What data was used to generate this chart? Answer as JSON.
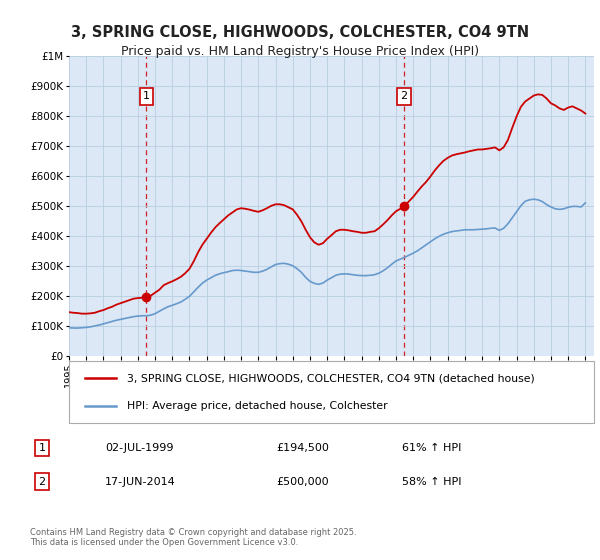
{
  "title": "3, SPRING CLOSE, HIGHWOODS, COLCHESTER, CO4 9TN",
  "subtitle": "Price paid vs. HM Land Registry's House Price Index (HPI)",
  "title_fontsize": 10.5,
  "subtitle_fontsize": 9,
  "ylim": [
    0,
    1000000
  ],
  "yticks": [
    0,
    100000,
    200000,
    300000,
    400000,
    500000,
    600000,
    700000,
    800000,
    900000,
    1000000
  ],
  "ytick_labels": [
    "£0",
    "£100K",
    "£200K",
    "£300K",
    "£400K",
    "£500K",
    "£600K",
    "£700K",
    "£800K",
    "£900K",
    "£1M"
  ],
  "background_color": "#ffffff",
  "plot_bg_color": "#dce8f5",
  "grid_color": "#b8cfe0",
  "marker1_date": 1999.5,
  "marker1_price": 194500,
  "marker1_label": "1",
  "marker2_date": 2014.46,
  "marker2_price": 500000,
  "marker2_label": "2",
  "legend_label_red": "3, SPRING CLOSE, HIGHWOODS, COLCHESTER, CO4 9TN (detached house)",
  "legend_label_blue": "HPI: Average price, detached house, Colchester",
  "table_row1": [
    "1",
    "02-JUL-1999",
    "£194,500",
    "61% ↑ HPI"
  ],
  "table_row2": [
    "2",
    "17-JUN-2014",
    "£500,000",
    "58% ↑ HPI"
  ],
  "footer": "Contains HM Land Registry data © Crown copyright and database right 2025.\nThis data is licensed under the Open Government Licence v3.0.",
  "red_line_color": "#cc0000",
  "blue_line_color": "#6699cc",
  "vline_color": "#cc0000",
  "hpi_red_data": {
    "years": [
      1995.0,
      1995.25,
      1995.5,
      1995.75,
      1996.0,
      1996.25,
      1996.5,
      1996.75,
      1997.0,
      1997.25,
      1997.5,
      1997.75,
      1998.0,
      1998.25,
      1998.5,
      1998.75,
      1999.0,
      1999.25,
      1999.5,
      1999.75,
      2000.0,
      2000.25,
      2000.5,
      2000.75,
      2001.0,
      2001.25,
      2001.5,
      2001.75,
      2002.0,
      2002.25,
      2002.5,
      2002.75,
      2003.0,
      2003.25,
      2003.5,
      2003.75,
      2004.0,
      2004.25,
      2004.5,
      2004.75,
      2005.0,
      2005.25,
      2005.5,
      2005.75,
      2006.0,
      2006.25,
      2006.5,
      2006.75,
      2007.0,
      2007.25,
      2007.5,
      2007.75,
      2008.0,
      2008.25,
      2008.5,
      2008.75,
      2009.0,
      2009.25,
      2009.5,
      2009.75,
      2010.0,
      2010.25,
      2010.5,
      2010.75,
      2011.0,
      2011.25,
      2011.5,
      2011.75,
      2012.0,
      2012.25,
      2012.5,
      2012.75,
      2013.0,
      2013.25,
      2013.5,
      2013.75,
      2014.0,
      2014.25,
      2014.5,
      2014.75,
      2015.0,
      2015.25,
      2015.5,
      2015.75,
      2016.0,
      2016.25,
      2016.5,
      2016.75,
      2017.0,
      2017.25,
      2017.5,
      2017.75,
      2018.0,
      2018.25,
      2018.5,
      2018.75,
      2019.0,
      2019.25,
      2019.5,
      2019.75,
      2020.0,
      2020.25,
      2020.5,
      2020.75,
      2021.0,
      2021.25,
      2021.5,
      2021.75,
      2022.0,
      2022.25,
      2022.5,
      2022.75,
      2023.0,
      2023.25,
      2023.5,
      2023.75,
      2024.0,
      2024.25,
      2024.5,
      2024.75,
      2025.0
    ],
    "values": [
      145000,
      143000,
      142000,
      140000,
      140000,
      141000,
      143000,
      148000,
      152000,
      158000,
      163000,
      170000,
      175000,
      180000,
      185000,
      190000,
      192000,
      193000,
      194500,
      200000,
      210000,
      220000,
      235000,
      242000,
      248000,
      255000,
      263000,
      275000,
      290000,
      315000,
      345000,
      370000,
      390000,
      410000,
      428000,
      442000,
      455000,
      468000,
      478000,
      488000,
      492000,
      490000,
      487000,
      483000,
      480000,
      485000,
      492000,
      500000,
      505000,
      505000,
      502000,
      495000,
      488000,
      470000,
      448000,
      420000,
      395000,
      378000,
      370000,
      375000,
      390000,
      402000,
      415000,
      420000,
      420000,
      418000,
      415000,
      413000,
      410000,
      410000,
      413000,
      415000,
      425000,
      438000,
      452000,
      468000,
      482000,
      490000,
      500000,
      515000,
      530000,
      548000,
      565000,
      580000,
      598000,
      618000,
      635000,
      650000,
      660000,
      668000,
      672000,
      675000,
      678000,
      682000,
      685000,
      688000,
      688000,
      690000,
      692000,
      695000,
      685000,
      695000,
      720000,
      760000,
      798000,
      830000,
      848000,
      858000,
      868000,
      872000,
      870000,
      858000,
      842000,
      835000,
      825000,
      820000,
      828000,
      832000,
      825000,
      818000,
      808000
    ]
  },
  "hpi_blue_data": {
    "years": [
      1995.0,
      1995.25,
      1995.5,
      1995.75,
      1996.0,
      1996.25,
      1996.5,
      1996.75,
      1997.0,
      1997.25,
      1997.5,
      1997.75,
      1998.0,
      1998.25,
      1998.5,
      1998.75,
      1999.0,
      1999.25,
      1999.5,
      1999.75,
      2000.0,
      2000.25,
      2000.5,
      2000.75,
      2001.0,
      2001.25,
      2001.5,
      2001.75,
      2002.0,
      2002.25,
      2002.5,
      2002.75,
      2003.0,
      2003.25,
      2003.5,
      2003.75,
      2004.0,
      2004.25,
      2004.5,
      2004.75,
      2005.0,
      2005.25,
      2005.5,
      2005.75,
      2006.0,
      2006.25,
      2006.5,
      2006.75,
      2007.0,
      2007.25,
      2007.5,
      2007.75,
      2008.0,
      2008.25,
      2008.5,
      2008.75,
      2009.0,
      2009.25,
      2009.5,
      2009.75,
      2010.0,
      2010.25,
      2010.5,
      2010.75,
      2011.0,
      2011.25,
      2011.5,
      2011.75,
      2012.0,
      2012.25,
      2012.5,
      2012.75,
      2013.0,
      2013.25,
      2013.5,
      2013.75,
      2014.0,
      2014.25,
      2014.5,
      2014.75,
      2015.0,
      2015.25,
      2015.5,
      2015.75,
      2016.0,
      2016.25,
      2016.5,
      2016.75,
      2017.0,
      2017.25,
      2017.5,
      2017.75,
      2018.0,
      2018.25,
      2018.5,
      2018.75,
      2019.0,
      2019.25,
      2019.5,
      2019.75,
      2020.0,
      2020.25,
      2020.5,
      2020.75,
      2021.0,
      2021.25,
      2021.5,
      2021.75,
      2022.0,
      2022.25,
      2022.5,
      2022.75,
      2023.0,
      2023.25,
      2023.5,
      2023.75,
      2024.0,
      2024.25,
      2024.5,
      2024.75,
      2025.0
    ],
    "values": [
      93000,
      92000,
      92000,
      93000,
      94000,
      96000,
      99000,
      102000,
      106000,
      110000,
      114000,
      118000,
      121000,
      124000,
      127000,
      130000,
      132000,
      133000,
      133000,
      135000,
      140000,
      148000,
      156000,
      163000,
      168000,
      173000,
      179000,
      188000,
      198000,
      213000,
      228000,
      242000,
      252000,
      260000,
      268000,
      273000,
      277000,
      280000,
      284000,
      285000,
      284000,
      282000,
      280000,
      278000,
      278000,
      282000,
      288000,
      296000,
      304000,
      307000,
      308000,
      305000,
      300000,
      290000,
      278000,
      261000,
      248000,
      241000,
      238000,
      242000,
      252000,
      260000,
      268000,
      272000,
      273000,
      272000,
      270000,
      268000,
      267000,
      267000,
      268000,
      270000,
      275000,
      283000,
      293000,
      305000,
      316000,
      322000,
      328000,
      335000,
      342000,
      350000,
      360000,
      370000,
      380000,
      390000,
      398000,
      405000,
      410000,
      414000,
      416000,
      418000,
      420000,
      420000,
      420000,
      421000,
      422000,
      423000,
      425000,
      426000,
      418000,
      425000,
      440000,
      460000,
      480000,
      500000,
      515000,
      520000,
      522000,
      520000,
      514000,
      504000,
      496000,
      490000,
      488000,
      490000,
      495000,
      498000,
      498000,
      496000,
      510000
    ]
  },
  "xtick_years": [
    1995,
    1996,
    1997,
    1998,
    1999,
    2000,
    2001,
    2002,
    2003,
    2004,
    2005,
    2006,
    2007,
    2008,
    2009,
    2010,
    2011,
    2012,
    2013,
    2014,
    2015,
    2016,
    2017,
    2018,
    2019,
    2020,
    2021,
    2022,
    2023,
    2024,
    2025
  ]
}
